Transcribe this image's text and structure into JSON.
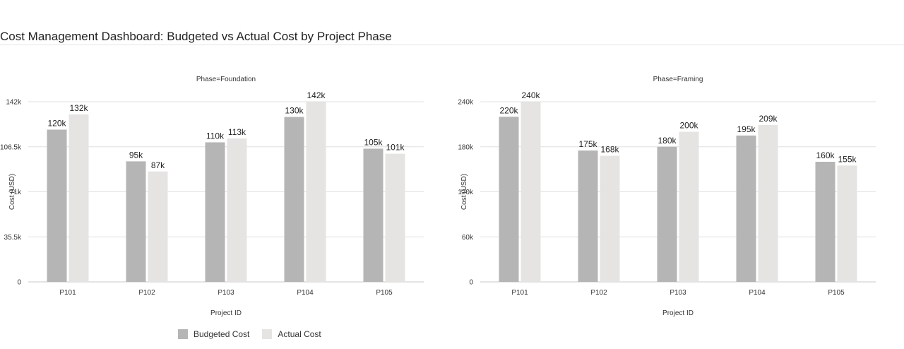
{
  "page": {
    "title": "Cost Management Dashboard: Budgeted vs Actual Cost by Project Phase"
  },
  "legend": [
    {
      "label": "Budgeted Cost",
      "color": "#b5b5b5"
    },
    {
      "label": "Actual Cost",
      "color": "#e5e4e2"
    }
  ],
  "chart_data": [
    {
      "type": "bar",
      "title": "Phase=Foundation",
      "xlabel": "Project ID",
      "ylabel": "Cost (USD)",
      "categories": [
        "P101",
        "P102",
        "P103",
        "P104",
        "P105"
      ],
      "ylim": [
        0,
        142000
      ],
      "yticks": [
        0,
        35500,
        71000,
        106500,
        142000
      ],
      "ytick_labels": [
        "0",
        "35.5k",
        "71k",
        "106.5k",
        "142k"
      ],
      "grid": true,
      "series": [
        {
          "name": "Budgeted Cost",
          "values": [
            120000,
            95000,
            110000,
            130000,
            105000
          ],
          "labels": [
            "120k",
            "95k",
            "110k",
            "130k",
            "105k"
          ]
        },
        {
          "name": "Actual Cost",
          "values": [
            132000,
            87000,
            113000,
            142000,
            101000
          ],
          "labels": [
            "132k",
            "87k",
            "113k",
            "142k",
            "101k"
          ]
        }
      ]
    },
    {
      "type": "bar",
      "title": "Phase=Framing",
      "xlabel": "Project ID",
      "ylabel": "Cost (USD)",
      "categories": [
        "P101",
        "P102",
        "P103",
        "P104",
        "P105"
      ],
      "ylim": [
        0,
        240000
      ],
      "yticks": [
        0,
        60000,
        120000,
        180000,
        240000
      ],
      "ytick_labels": [
        "0",
        "60k",
        "120k",
        "180k",
        "240k"
      ],
      "grid": true,
      "series": [
        {
          "name": "Budgeted Cost",
          "values": [
            220000,
            175000,
            180000,
            195000,
            160000
          ],
          "labels": [
            "220k",
            "175k",
            "180k",
            "195k",
            "160k"
          ]
        },
        {
          "name": "Actual Cost",
          "values": [
            240000,
            168000,
            200000,
            209000,
            155000
          ],
          "labels": [
            "240k",
            "168k",
            "200k",
            "209k",
            "155k"
          ]
        }
      ]
    }
  ]
}
